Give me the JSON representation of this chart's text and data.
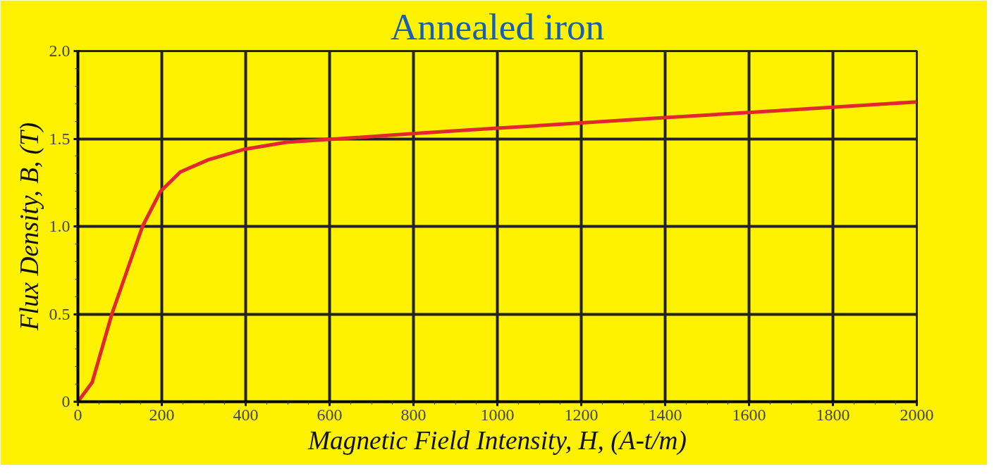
{
  "chart_data": {
    "type": "line",
    "title": "Annealed iron",
    "xlabel": "Magnetic Field Intensity, H, (A-t/m)",
    "ylabel": "Flux Density, B, (T)",
    "x": [
      0,
      34,
      81,
      154,
      197,
      244,
      311,
      397,
      497,
      623,
      804,
      1000,
      1200,
      1400,
      1600,
      1800,
      2000
    ],
    "series": [
      {
        "color": "#e0282e",
        "values": [
          0,
          0.11,
          0.5,
          1.0,
          1.2,
          1.31,
          1.38,
          1.44,
          1.48,
          1.5,
          1.53,
          1.56,
          1.59,
          1.62,
          1.65,
          1.68,
          1.71
        ]
      }
    ],
    "xlim": [
      0,
      2000
    ],
    "ylim": [
      0,
      2.0
    ],
    "xticks": [
      0,
      200,
      400,
      600,
      800,
      1000,
      1200,
      1400,
      1600,
      1800,
      2000
    ],
    "yticks": [
      0,
      0.5,
      {
        "value": 1.0,
        "label": "1.0"
      },
      1.5,
      {
        "value": 2.0,
        "label": "2.0"
      }
    ],
    "grid": true,
    "marker": "none",
    "line_style": "solid"
  }
}
